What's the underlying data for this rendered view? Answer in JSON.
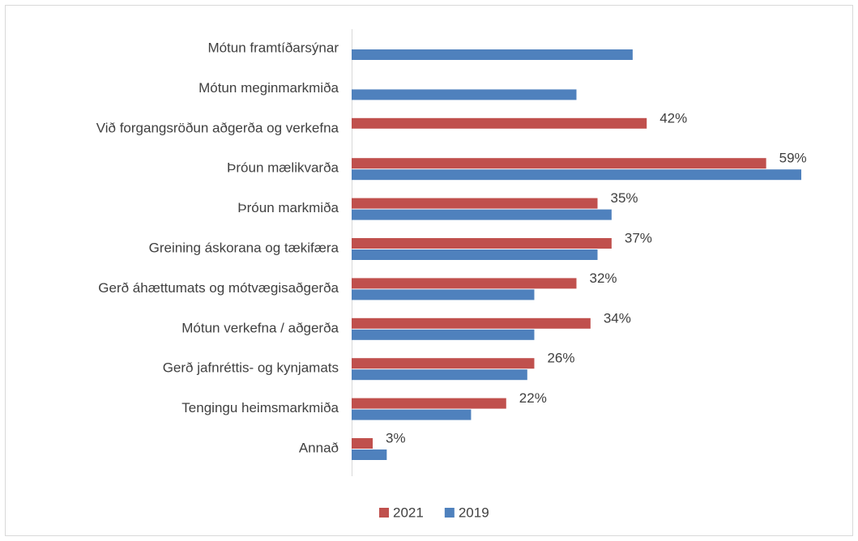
{
  "chart_data": {
    "type": "bar",
    "orientation": "horizontal",
    "categories": [
      "Mótun framtíðarsýnar",
      "Mótun meginmarkmiða",
      "Við forgangsröðun aðgerða og verkefna",
      "Þróun mælikvarða",
      "Þróun markmiða",
      "Greining áskorana og tækifæra",
      "Gerð áhættumats og mótvægisaðgerða",
      "Mótun verkefna / aðgerða",
      "Gerð jafnréttis- og kynjamats",
      "Tengingu heimsmarkmiða",
      "Annað"
    ],
    "series": [
      {
        "name": "2021",
        "color": "#c0504d",
        "values": [
          null,
          null,
          42,
          59,
          35,
          37,
          32,
          34,
          26,
          22,
          3
        ],
        "value_labels": [
          null,
          null,
          "42%",
          "59%",
          "35%",
          "37%",
          "32%",
          "34%",
          "26%",
          "22%",
          "3%"
        ]
      },
      {
        "name": "2019",
        "color": "#4f81bd",
        "values": [
          40,
          32,
          null,
          64,
          37,
          35,
          26,
          26,
          25,
          17,
          5
        ]
      }
    ],
    "legend": "bottom"
  }
}
